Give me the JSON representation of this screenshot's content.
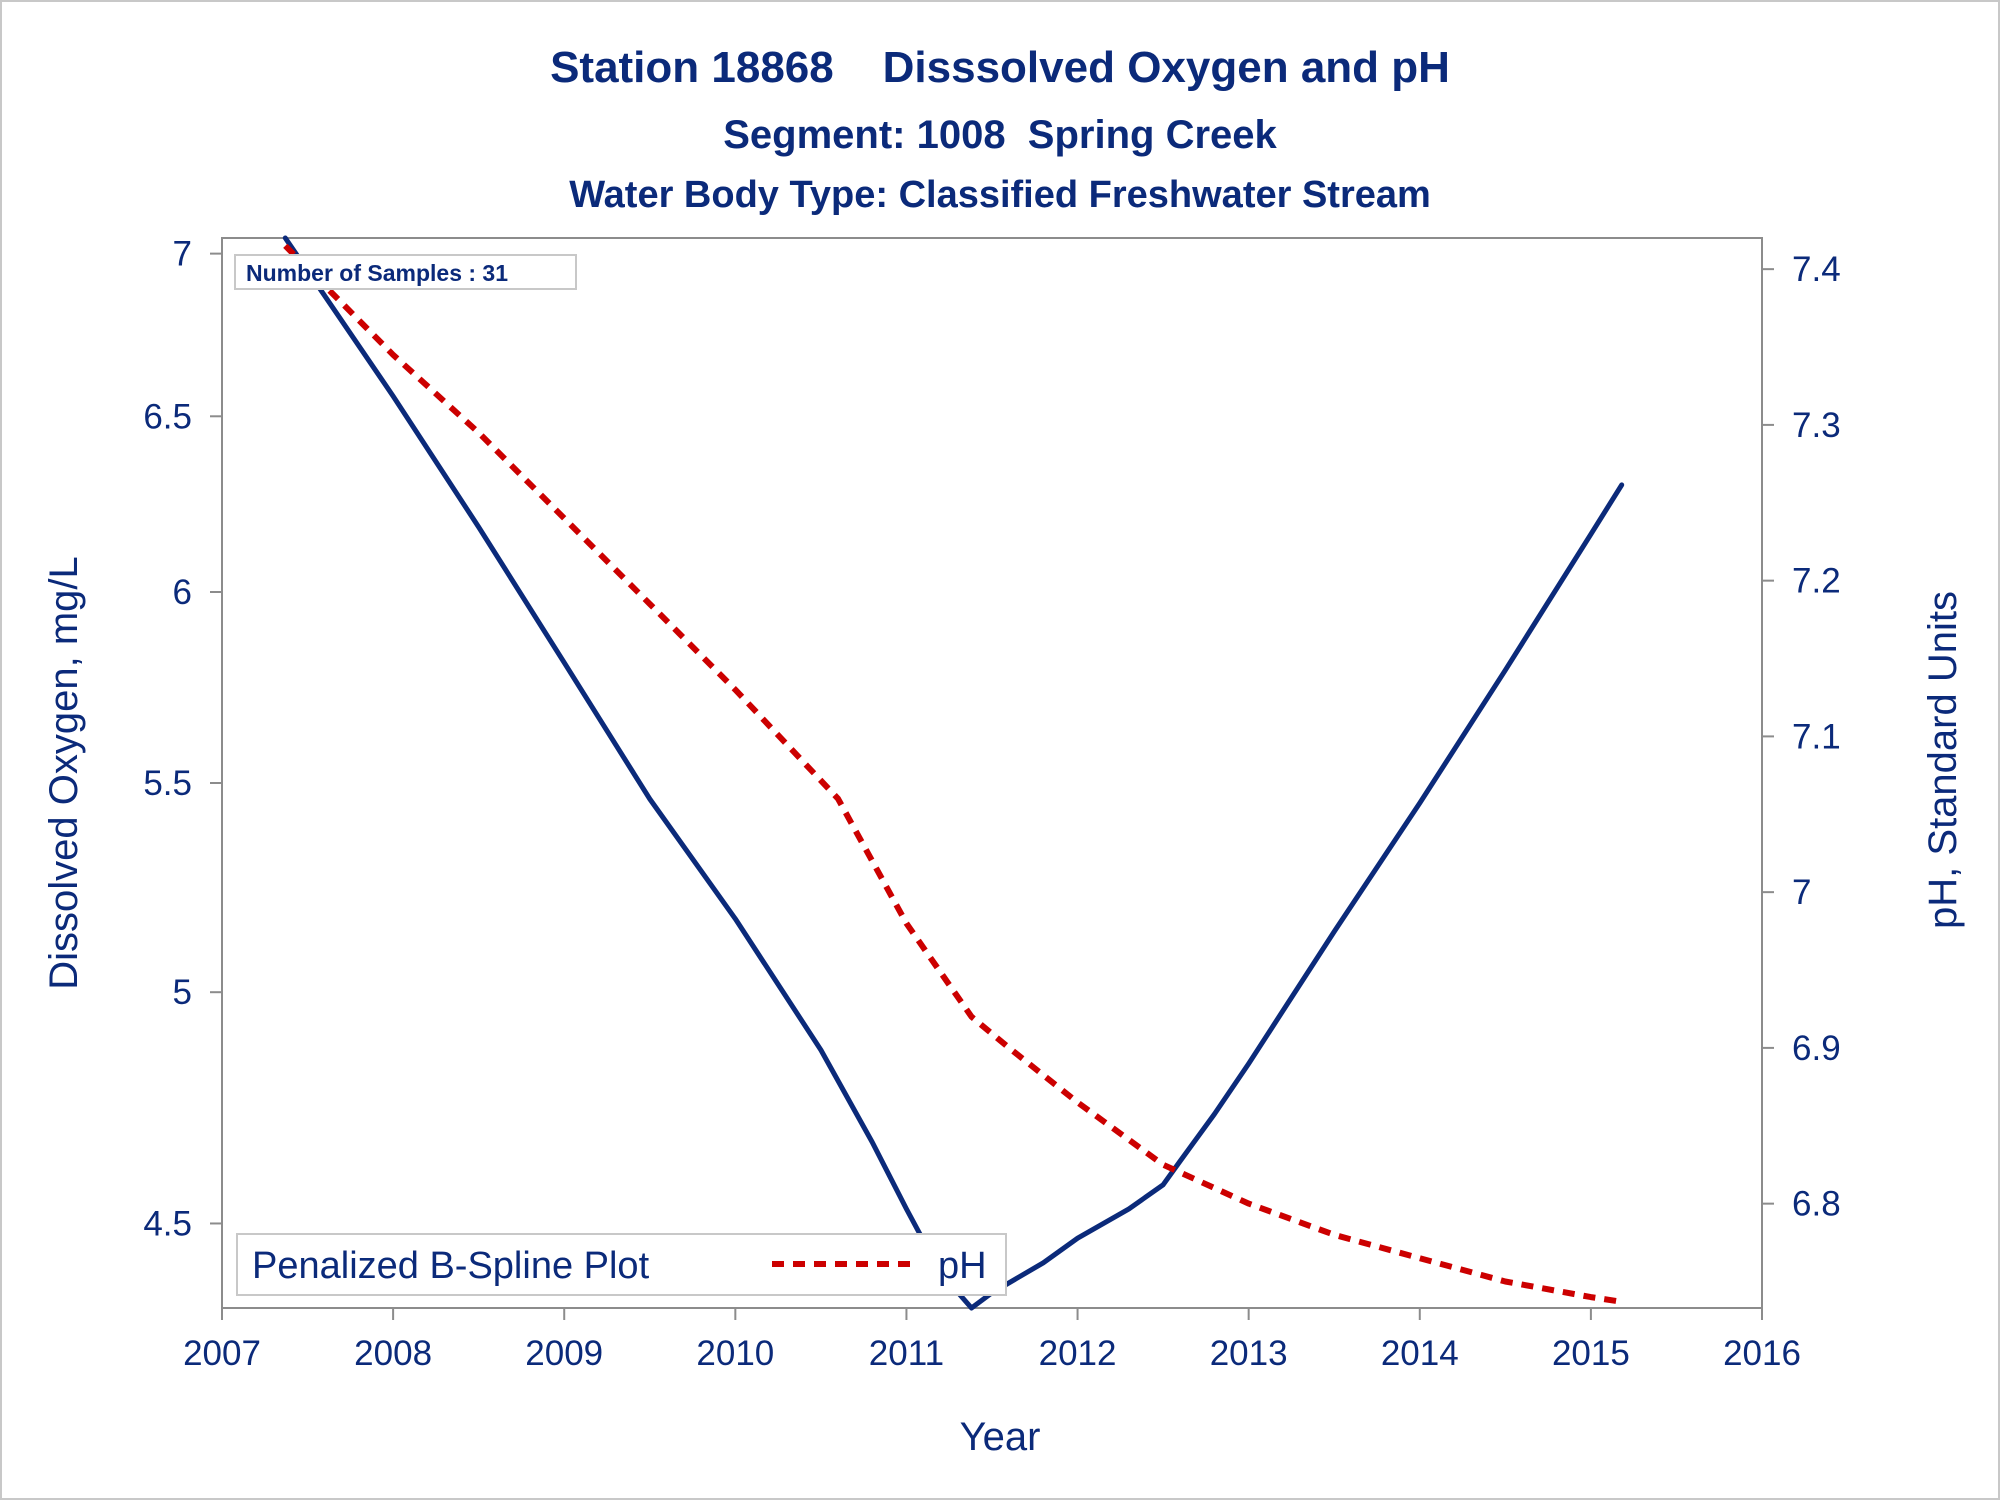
{
  "chart_data": {
    "type": "line",
    "title": "Station 18868    Disssolved Oxygen and pH",
    "subtitle": "Segment: 1008  Spring Creek",
    "subtitle2": "Water Body Type: Classified Freshwater Stream",
    "xlabel": "Year",
    "ylabel_left": "Dissolved Oxygen, mg/L",
    "ylabel_right": "pH, Standard Units",
    "xlim": [
      2007,
      2016
    ],
    "x_ticks": [
      2007,
      2008,
      2009,
      2010,
      2011,
      2012,
      2013,
      2014,
      2015,
      2016
    ],
    "y_left_scale": "log",
    "y_left_lim": [
      4.33,
      7.05
    ],
    "y_left_ticks": [
      4.5,
      5,
      5.5,
      6,
      6.5,
      7
    ],
    "y_left_tick_labels": [
      "4.5",
      "5",
      "5.5",
      "6",
      "6.5",
      "7"
    ],
    "y_right_lim": [
      6.733,
      7.42
    ],
    "y_right_ticks": [
      6.8,
      6.9,
      7.0,
      7.1,
      7.2,
      7.3,
      7.4
    ],
    "y_right_tick_labels": [
      "6.8",
      "6.9",
      "7",
      "7.1",
      "7.2",
      "7.3",
      "7.4"
    ],
    "annotation": "Number of Samples : 31",
    "legend_position": "bottom-left",
    "series": [
      {
        "name": "Penalized B-Spline Plot",
        "axis": "left",
        "color": "#0b2a7a",
        "style": "solid",
        "x": [
          2007.37,
          2008.0,
          2008.5,
          2009.0,
          2009.5,
          2010.0,
          2010.5,
          2010.8,
          2011.0,
          2011.2,
          2011.38,
          2011.5,
          2011.8,
          2012.0,
          2012.3,
          2012.5,
          2012.6,
          2012.8,
          2013.0,
          2013.5,
          2014.0,
          2014.5,
          2015.0,
          2015.18
        ],
        "y": [
          7.05,
          6.56,
          6.18,
          5.81,
          5.46,
          5.17,
          4.87,
          4.67,
          4.53,
          4.4,
          4.33,
          4.36,
          4.42,
          4.47,
          4.53,
          4.58,
          4.63,
          4.73,
          4.84,
          5.14,
          5.45,
          5.79,
          6.16,
          6.3
        ]
      },
      {
        "name": "pH",
        "axis": "right",
        "color": "#cc0000",
        "style": "dashed",
        "x": [
          2007.37,
          2008.0,
          2008.5,
          2009.0,
          2009.5,
          2010.0,
          2010.6,
          2011.0,
          2011.38,
          2011.6,
          2012.0,
          2012.5,
          2013.0,
          2013.5,
          2014.0,
          2014.5,
          2015.0,
          2015.18
        ],
        "y": [
          7.415,
          7.345,
          7.295,
          7.24,
          7.185,
          7.13,
          7.06,
          6.98,
          6.92,
          6.9,
          6.865,
          6.825,
          6.8,
          6.78,
          6.765,
          6.75,
          6.74,
          6.737
        ]
      }
    ]
  },
  "colors": {
    "text": "#0b2a7a",
    "axis": "#8c8c8c",
    "ph_line": "#cc0000",
    "do_line": "#0b2a7a"
  }
}
